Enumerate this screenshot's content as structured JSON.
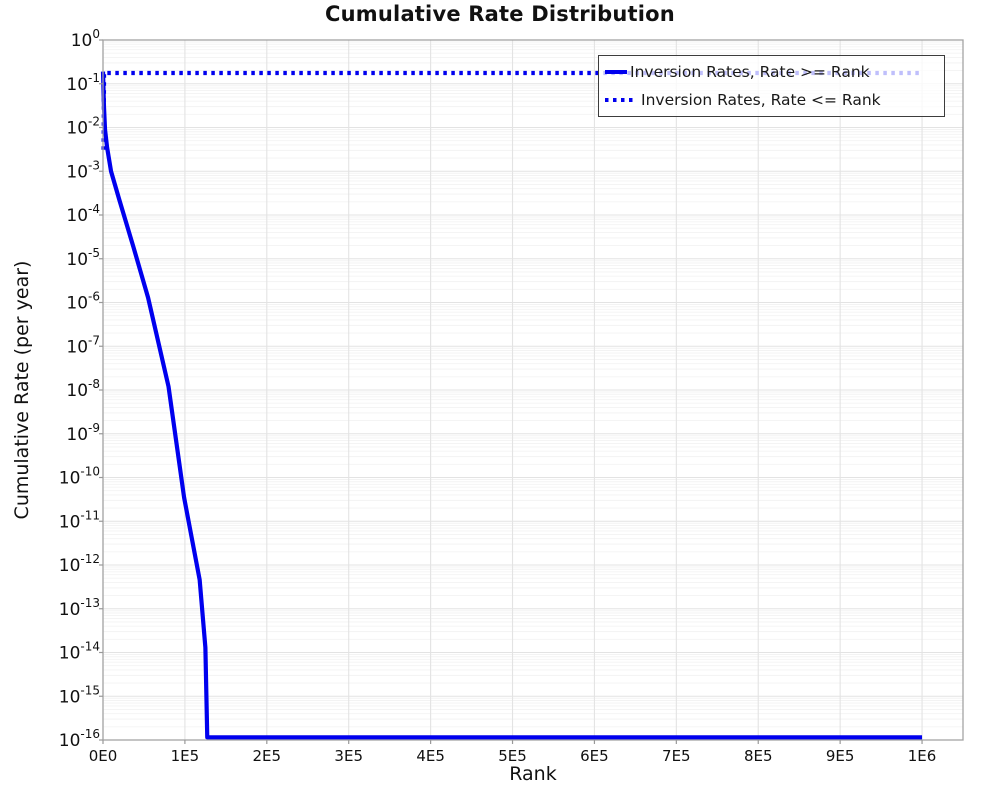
{
  "figure": {
    "title": "Cumulative Rate Distribution",
    "xlabel": "Rank",
    "ylabel": "Cumulative Rate (per year)"
  },
  "legend": {
    "position": "top-right",
    "entries": [
      {
        "label": "Inversion Rates, Rate >= Rank",
        "style": "solid"
      },
      {
        "label": "Inversion Rates, Rate <= Rank",
        "style": "dotted"
      }
    ]
  },
  "colors": {
    "series_blue": "#0000ee",
    "grid_major": "#e3e3e3",
    "grid_minor": "#f3f3f3",
    "frame": "#a3a3a3",
    "tick": "#999999",
    "text": "#111111"
  },
  "chart_data": {
    "type": "line",
    "title": "Cumulative Rate Distribution",
    "xlabel": "Rank",
    "ylabel": "Cumulative Rate (per year)",
    "yscale": "log",
    "grid": true,
    "legend_position": "top-right",
    "xlim": [
      0,
      1050000
    ],
    "ylim": [
      1e-16,
      1
    ],
    "x_ticks": [
      {
        "value": 0,
        "label": "0E0"
      },
      {
        "value": 100000,
        "label": "1E5"
      },
      {
        "value": 200000,
        "label": "2E5"
      },
      {
        "value": 300000,
        "label": "3E5"
      },
      {
        "value": 400000,
        "label": "4E5"
      },
      {
        "value": 500000,
        "label": "5E5"
      },
      {
        "value": 600000,
        "label": "6E5"
      },
      {
        "value": 700000,
        "label": "7E5"
      },
      {
        "value": 800000,
        "label": "8E5"
      },
      {
        "value": 900000,
        "label": "9E5"
      },
      {
        "value": 1000000,
        "label": "1E6"
      }
    ],
    "y_tick_exponents": [
      0,
      -1,
      -2,
      -3,
      -4,
      -5,
      -6,
      -7,
      -8,
      -9,
      -10,
      -11,
      -12,
      -13,
      -14,
      -15,
      -16
    ],
    "series": [
      {
        "name": "Inversion Rates, Rate >= Rank",
        "style": "solid",
        "color": "#0000ee",
        "points": [
          [
            0,
            0.19
          ],
          [
            1200,
            0.03
          ],
          [
            2500,
            0.0088
          ],
          [
            5000,
            0.0035
          ],
          [
            9800,
            0.001
          ],
          [
            20000,
            0.00022
          ],
          [
            37000,
            1.9e-05
          ],
          [
            55000,
            1.3e-06
          ],
          [
            80000,
            1.2e-08
          ],
          [
            99000,
            3.5e-11
          ],
          [
            118000,
            4.6e-13
          ],
          [
            125000,
            1.3e-14
          ],
          [
            127300,
            1.15e-16
          ],
          [
            1000000,
            1.15e-16
          ]
        ]
      },
      {
        "name": "Inversion Rates, Rate <= Rank",
        "style": "dotted",
        "color": "#0000ee",
        "points": [
          [
            700,
            0.0031
          ],
          [
            1000,
            0.02
          ],
          [
            1300,
            0.176
          ],
          [
            1000000,
            0.176
          ]
        ]
      }
    ]
  }
}
